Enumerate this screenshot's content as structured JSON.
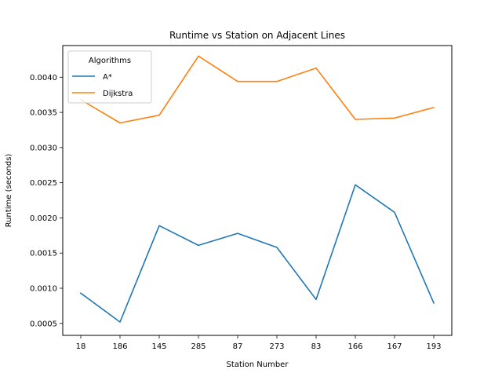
{
  "chart_data": {
    "type": "line",
    "title": "Runtime vs Station on Adjacent Lines",
    "xlabel": "Station Number",
    "ylabel": "Runtime (seconds)",
    "categories": [
      "18",
      "186",
      "145",
      "285",
      "87",
      "273",
      "83",
      "166",
      "167",
      "193"
    ],
    "series": [
      {
        "name": "A*",
        "color": "#1f77b4",
        "values": [
          0.00093,
          0.00052,
          0.00189,
          0.00161,
          0.00178,
          0.00158,
          0.00084,
          0.00247,
          0.00208,
          0.00079
        ]
      },
      {
        "name": "Dijkstra",
        "color": "#ff7f0e",
        "values": [
          0.00368,
          0.00335,
          0.00346,
          0.0043,
          0.00394,
          0.00394,
          0.00413,
          0.0034,
          0.00342,
          0.00357
        ]
      }
    ],
    "ylim": [
      0.00033,
      0.00445
    ],
    "yticks": [
      0.0005,
      0.001,
      0.0015,
      0.002,
      0.0025,
      0.003,
      0.0035,
      0.004
    ],
    "ytick_labels": [
      "0.0005",
      "0.0010",
      "0.0015",
      "0.0020",
      "0.0025",
      "0.0030",
      "0.0035",
      "0.0040"
    ],
    "grid": false,
    "legend": {
      "title": "Algorithms",
      "placement": "upper-left"
    }
  }
}
